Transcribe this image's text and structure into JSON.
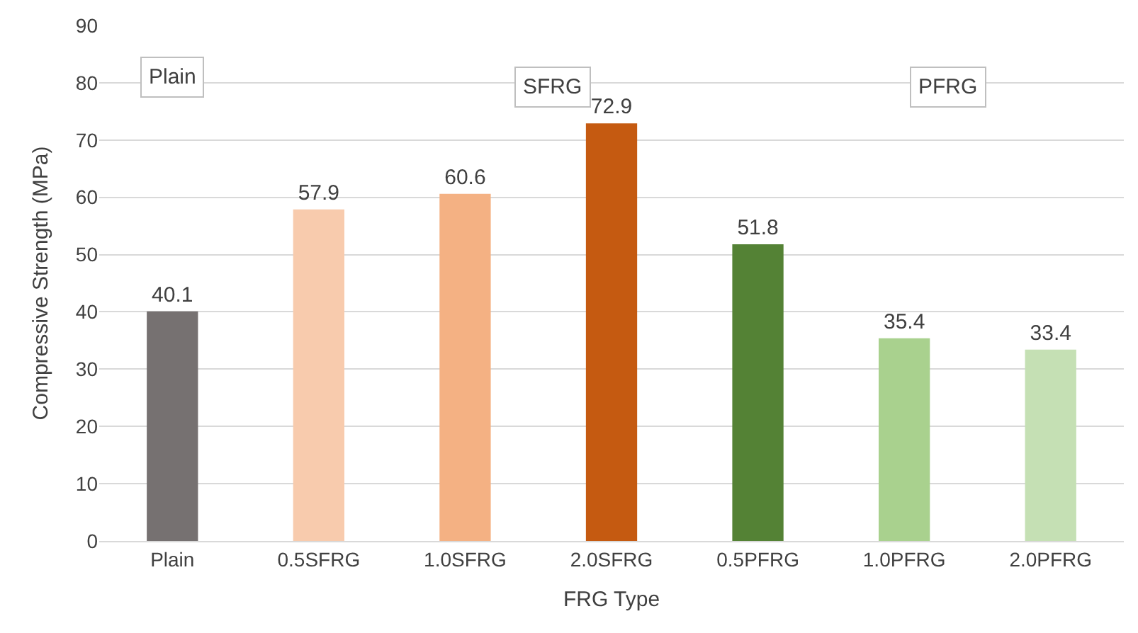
{
  "chart_data": {
    "type": "bar",
    "xlabel": "FRG Type",
    "ylabel": "Compressive Strength (MPa)",
    "categories": [
      "Plain",
      "0.5SFRG",
      "1.0SFRG",
      "2.0SFRG",
      "0.5PFRG",
      "1.0PFRG",
      "2.0PFRG"
    ],
    "values": [
      40.1,
      57.9,
      60.6,
      72.9,
      51.8,
      35.4,
      33.4
    ],
    "colors": [
      "#767171",
      "#f8cbad",
      "#f4b183",
      "#c55a11",
      "#548235",
      "#a9d18e",
      "#c5e0b4"
    ],
    "ylim": [
      0,
      90
    ],
    "yticks": [
      0,
      10,
      20,
      30,
      40,
      50,
      60,
      70,
      80,
      90
    ],
    "grid": "y",
    "legend": false,
    "data_labels": true,
    "annotations": [
      "Plain",
      "SFRG",
      "PFRG"
    ]
  }
}
